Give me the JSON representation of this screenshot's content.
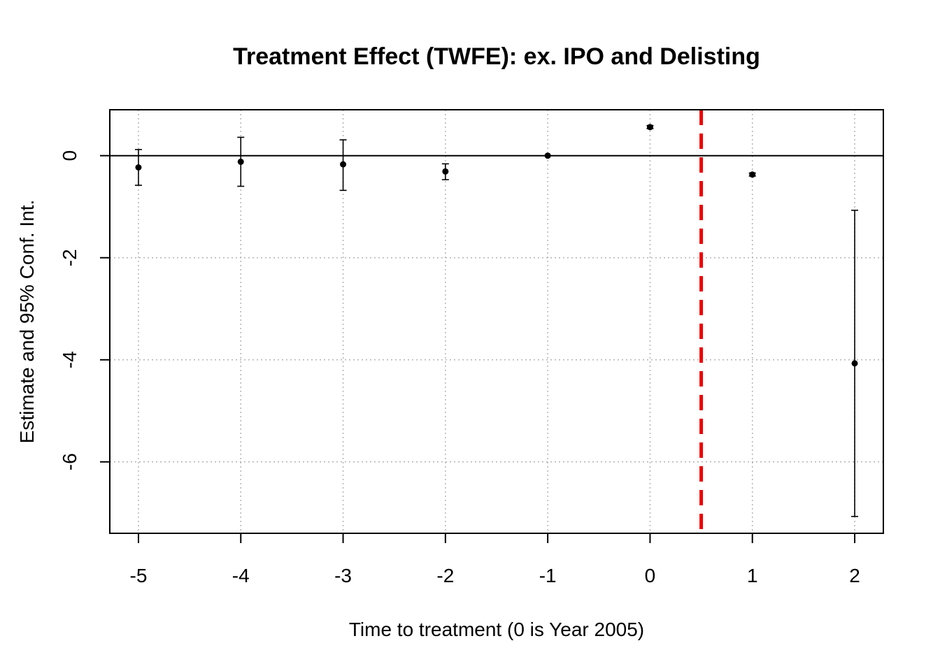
{
  "chart_data": {
    "type": "scatter",
    "title": "Treatment Effect (TWFE): ex. IPO and Delisting",
    "xlabel": "Time to treatment (0 is Year 2005)",
    "ylabel": "Estimate and 95% Conf. Int.",
    "xlim": [
      -5.28,
      2.28
    ],
    "ylim": [
      -7.4,
      0.9
    ],
    "x_ticks": [
      -5,
      -4,
      -3,
      -2,
      -1,
      0,
      1,
      2
    ],
    "x_tick_labels": [
      "-5",
      "-4",
      "-3",
      "-2",
      "-1",
      "0",
      "1",
      "2"
    ],
    "y_ticks": [
      0,
      -2,
      -4,
      -6
    ],
    "y_tick_labels": [
      "0",
      "-2",
      "-4",
      "-6"
    ],
    "grid": true,
    "reference_hline": 0,
    "reference_vline": 0.5,
    "reference_vline_color": "#ee0000",
    "points": [
      {
        "x": -5,
        "estimate": -0.23,
        "ci_low": -0.58,
        "ci_high": 0.12
      },
      {
        "x": -4,
        "estimate": -0.12,
        "ci_low": -0.6,
        "ci_high": 0.36
      },
      {
        "x": -3,
        "estimate": -0.17,
        "ci_low": -0.68,
        "ci_high": 0.31
      },
      {
        "x": -2,
        "estimate": -0.31,
        "ci_low": -0.47,
        "ci_high": -0.16
      },
      {
        "x": -1,
        "estimate": 0.0,
        "ci_low": 0.0,
        "ci_high": 0.0
      },
      {
        "x": 0,
        "estimate": 0.56,
        "ci_low": 0.53,
        "ci_high": 0.59
      },
      {
        "x": 1,
        "estimate": -0.37,
        "ci_low": -0.4,
        "ci_high": -0.34
      },
      {
        "x": 2,
        "estimate": -4.07,
        "ci_low": -7.07,
        "ci_high": -1.07
      }
    ]
  }
}
